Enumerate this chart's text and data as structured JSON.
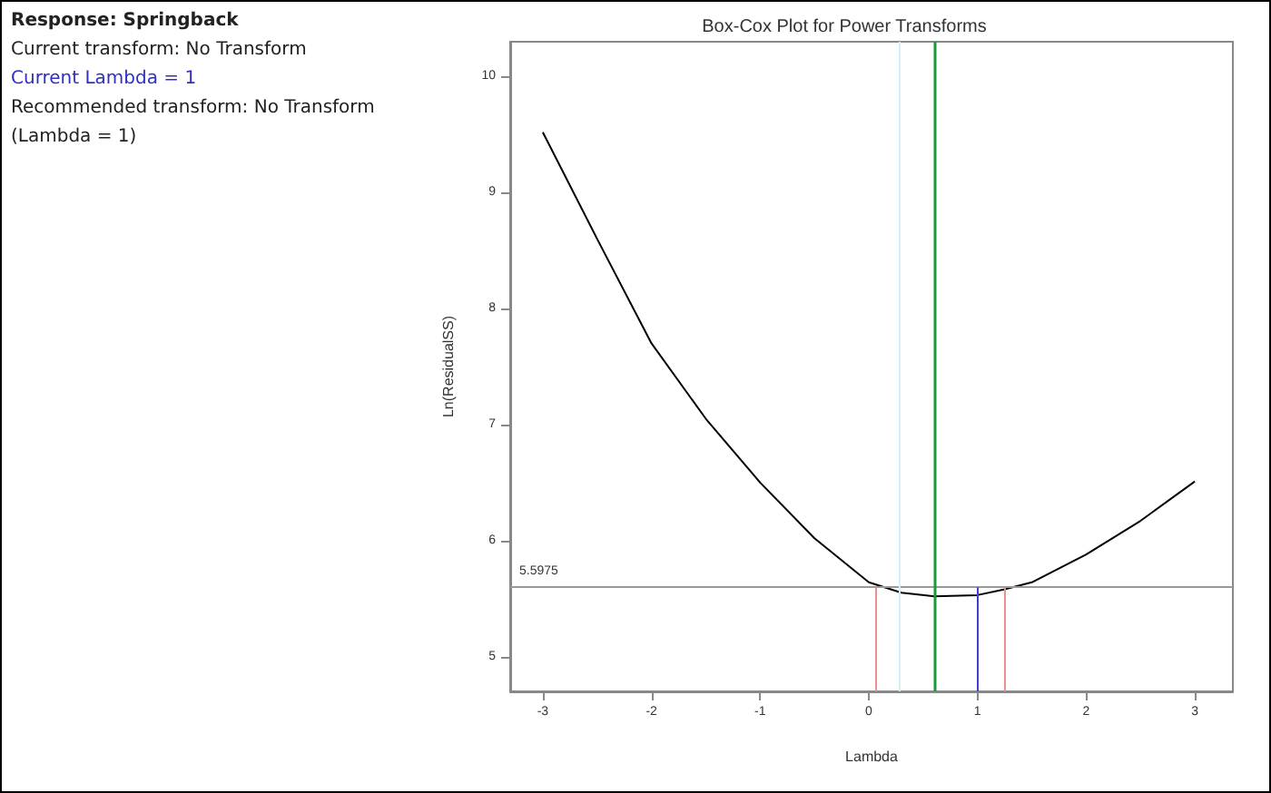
{
  "chart_data": {
    "type": "line",
    "title": "Box-Cox Plot for Power Transforms",
    "xlabel": "Lambda",
    "ylabel": "Ln(ResidualSS)",
    "annotations": [
      "Response: Springback",
      "Current transform: No Transform",
      "Current Lambda = 1",
      "Recommended transform: No Transform",
      " (Lambda = 1)"
    ],
    "x": [
      -3,
      -2.5,
      -2,
      -1.5,
      -1,
      -0.5,
      0,
      0.3,
      0.6,
      1,
      1.25,
      1.5,
      2,
      2.5,
      3
    ],
    "series": [
      {
        "color": "#000000",
        "values": [
          9.52,
          8.6,
          7.7,
          7.05,
          6.5,
          6.02,
          5.64,
          5.55,
          5.52,
          5.53,
          5.58,
          5.64,
          5.88,
          6.17,
          6.51
        ]
      }
    ],
    "xlim": [
      -3.3,
      3.35
    ],
    "xticks": [
      -3,
      -2,
      -1,
      0,
      1,
      2,
      3
    ],
    "ylim": [
      4.7,
      10.3
    ],
    "yticks": [
      5,
      6,
      7,
      8,
      9,
      10
    ],
    "ref_lines": [
      {
        "axis": "y",
        "value": 5.5975,
        "label": "5.5975",
        "color": "#999999"
      },
      {
        "axis": "x",
        "value": 0.61,
        "color": "#1a9a3a"
      },
      {
        "axis": "x",
        "value": 0.28,
        "color": "#d8f0f4"
      },
      {
        "axis": "x",
        "value": 0.06,
        "color": "#e89090"
      },
      {
        "axis": "x",
        "value": 1.25,
        "color": "#e89090"
      },
      {
        "axis": "x",
        "value": 1,
        "color": "#4040d0"
      }
    ],
    "grid": false,
    "marker": "none",
    "line_style": "solid"
  }
}
